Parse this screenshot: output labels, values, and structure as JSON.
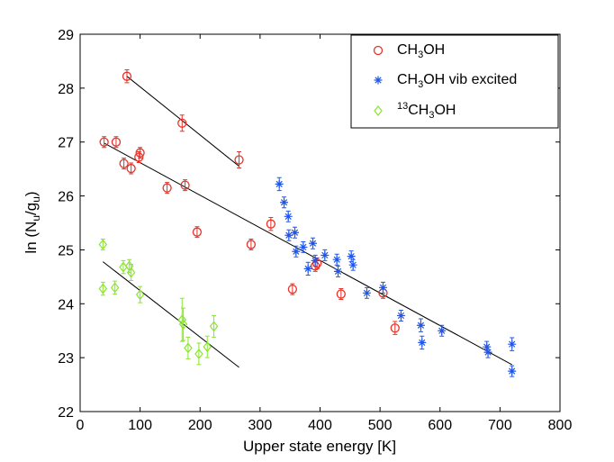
{
  "chart_data": {
    "type": "scatter",
    "title": "",
    "xlabel": "Upper state energy [K]",
    "ylabel": {
      "base": "ln (N",
      "sub1": "u",
      "mid": "/g",
      "sub2": "u",
      "end": ")"
    },
    "xlim": [
      0,
      800
    ],
    "ylim": [
      22,
      29
    ],
    "xticks": [
      "0",
      "100",
      "200",
      "300",
      "400",
      "500",
      "600",
      "700",
      "800"
    ],
    "yticks": [
      "22",
      "23",
      "24",
      "25",
      "26",
      "27",
      "28",
      "29"
    ],
    "grid": false,
    "legend_position": "top-right",
    "legend": [
      {
        "marker": "circle",
        "color": "#e8322a",
        "pre": "",
        "sup": "",
        "base": "CH",
        "sub": "3",
        "post": "OH"
      },
      {
        "marker": "asterisk",
        "color": "#2255e6",
        "pre": "",
        "sup": "",
        "base": "CH",
        "sub": "3",
        "post": "OH vib excited"
      },
      {
        "marker": "diamond",
        "color": "#8ae62e",
        "pre": "",
        "sup": "13",
        "base": "CH",
        "sub": "3",
        "post": "OH"
      }
    ],
    "series": [
      {
        "name": "CH3OH",
        "marker": "circle",
        "color": "#e8322a",
        "points": [
          {
            "x": 78,
            "y": 28.22,
            "err": 0.12
          },
          {
            "x": 170,
            "y": 27.35,
            "err": 0.15
          },
          {
            "x": 265,
            "y": 26.67,
            "err": 0.15
          },
          {
            "x": 40,
            "y": 27.0,
            "err": 0.1
          },
          {
            "x": 60,
            "y": 27.0,
            "err": 0.1
          },
          {
            "x": 73,
            "y": 26.6,
            "err": 0.1
          },
          {
            "x": 85,
            "y": 26.51,
            "err": 0.1
          },
          {
            "x": 98,
            "y": 26.72,
            "err": 0.1
          },
          {
            "x": 100,
            "y": 26.8,
            "err": 0.1
          },
          {
            "x": 145,
            "y": 26.15,
            "err": 0.1
          },
          {
            "x": 175,
            "y": 26.2,
            "err": 0.1
          },
          {
            "x": 195,
            "y": 25.33,
            "err": 0.1
          },
          {
            "x": 285,
            "y": 25.1,
            "err": 0.1
          },
          {
            "x": 318,
            "y": 25.48,
            "err": 0.12
          },
          {
            "x": 354,
            "y": 24.27,
            "err": 0.1
          },
          {
            "x": 392,
            "y": 24.7,
            "err": 0.1
          },
          {
            "x": 395,
            "y": 24.75,
            "err": 0.1
          },
          {
            "x": 435,
            "y": 24.18,
            "err": 0.1
          },
          {
            "x": 505,
            "y": 24.2,
            "err": 0.1
          },
          {
            "x": 525,
            "y": 23.55,
            "err": 0.12
          }
        ],
        "fits": [
          {
            "x": [
              78,
              265
            ],
            "y": [
              28.22,
              26.55
            ]
          },
          {
            "x": [
              40,
              720
            ],
            "y": [
              26.98,
              22.87
            ]
          }
        ]
      },
      {
        "name": "CH3OH vib excited",
        "marker": "asterisk",
        "color": "#2255e6",
        "points": [
          {
            "x": 332,
            "y": 26.22,
            "err": 0.12
          },
          {
            "x": 340,
            "y": 25.88,
            "err": 0.1
          },
          {
            "x": 347,
            "y": 25.62,
            "err": 0.1
          },
          {
            "x": 348,
            "y": 25.27,
            "err": 0.1
          },
          {
            "x": 358,
            "y": 25.32,
            "err": 0.1
          },
          {
            "x": 360,
            "y": 24.97,
            "err": 0.1
          },
          {
            "x": 372,
            "y": 25.05,
            "err": 0.1
          },
          {
            "x": 380,
            "y": 24.65,
            "err": 0.12
          },
          {
            "x": 388,
            "y": 25.12,
            "err": 0.1
          },
          {
            "x": 392,
            "y": 24.8,
            "err": 0.1
          },
          {
            "x": 408,
            "y": 24.9,
            "err": 0.1
          },
          {
            "x": 428,
            "y": 24.82,
            "err": 0.1
          },
          {
            "x": 430,
            "y": 24.6,
            "err": 0.1
          },
          {
            "x": 452,
            "y": 24.88,
            "err": 0.1
          },
          {
            "x": 455,
            "y": 24.72,
            "err": 0.1
          },
          {
            "x": 478,
            "y": 24.2,
            "err": 0.1
          },
          {
            "x": 505,
            "y": 24.3,
            "err": 0.1
          },
          {
            "x": 535,
            "y": 23.78,
            "err": 0.1
          },
          {
            "x": 568,
            "y": 23.6,
            "err": 0.12
          },
          {
            "x": 570,
            "y": 23.28,
            "err": 0.12
          },
          {
            "x": 603,
            "y": 23.5,
            "err": 0.1
          },
          {
            "x": 678,
            "y": 23.2,
            "err": 0.1
          },
          {
            "x": 680,
            "y": 23.1,
            "err": 0.1
          },
          {
            "x": 720,
            "y": 23.25,
            "err": 0.12
          },
          {
            "x": 720,
            "y": 22.75,
            "err": 0.1
          }
        ],
        "fits": []
      },
      {
        "name": "13CH3OH",
        "marker": "diamond",
        "color": "#8ae62e",
        "points": [
          {
            "x": 38,
            "y": 25.1,
            "err": 0.1
          },
          {
            "x": 38,
            "y": 24.28,
            "err": 0.12
          },
          {
            "x": 58,
            "y": 24.3,
            "err": 0.12
          },
          {
            "x": 72,
            "y": 24.68,
            "err": 0.12
          },
          {
            "x": 82,
            "y": 24.7,
            "err": 0.12
          },
          {
            "x": 85,
            "y": 24.58,
            "err": 0.15
          },
          {
            "x": 100,
            "y": 24.17,
            "err": 0.15
          },
          {
            "x": 170,
            "y": 23.7,
            "err": 0.4
          },
          {
            "x": 172,
            "y": 23.62,
            "err": 0.3
          },
          {
            "x": 180,
            "y": 23.18,
            "err": 0.2
          },
          {
            "x": 198,
            "y": 23.07,
            "err": 0.2
          },
          {
            "x": 212,
            "y": 23.2,
            "err": 0.2
          },
          {
            "x": 223,
            "y": 23.58,
            "err": 0.2
          }
        ],
        "fits": [
          {
            "x": [
              38,
              265
            ],
            "y": [
              24.78,
              22.82
            ]
          }
        ]
      }
    ]
  }
}
